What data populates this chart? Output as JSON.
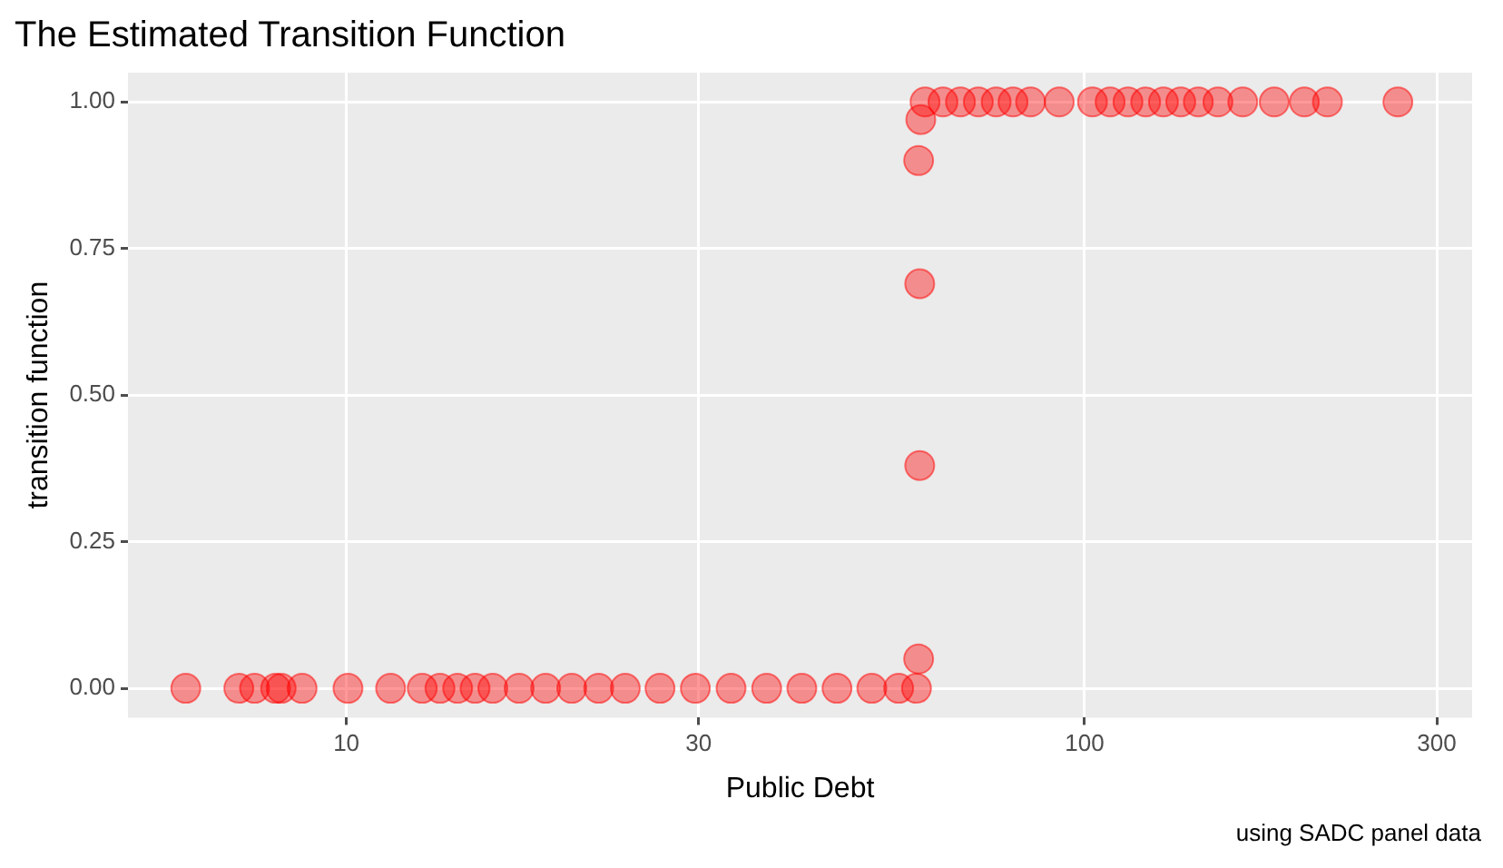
{
  "chart_data": {
    "type": "scatter",
    "title": "The Estimated Transition Function",
    "xlabel": "Public Debt",
    "ylabel": "transition function",
    "annotations": [
      "using SADC panel data"
    ],
    "log": "x",
    "xlim": [
      5.06,
      335
    ],
    "xticks": [
      10,
      30,
      100,
      300
    ],
    "ylim": [
      -0.05,
      1.05
    ],
    "yticks": [
      {
        "value": 0,
        "label": "0.00"
      },
      {
        "value": 0.25,
        "label": "0.25"
      },
      {
        "value": 0.5,
        "label": "0.50"
      },
      {
        "value": 0.75,
        "label": "0.75"
      },
      {
        "value": 1,
        "label": "1.00"
      }
    ],
    "grid": true,
    "legend": false,
    "marker": "circle",
    "series": [
      {
        "color": "#ff0000",
        "x": [
          6.06,
          7.15,
          7.51,
          8.02,
          8.16,
          8.71,
          10.05,
          11.48,
          12.67,
          13.39,
          14.15,
          14.94,
          15.79,
          17.14,
          18.62,
          20.2,
          21.97,
          23.87,
          26.6,
          29.7,
          33.2,
          37.1,
          41.4,
          46.2,
          51.5,
          56.0,
          59.2,
          59.6,
          59.8,
          59.8,
          59.6,
          60.0,
          60.8,
          64.3,
          67.9,
          71.8,
          75.9,
          80.0,
          84.5,
          92.4,
          102.5,
          108.3,
          114.5,
          121.0,
          127.9,
          135.0,
          142.6,
          151.6,
          163.8,
          180.7,
          198.5,
          213.3,
          265.7
        ],
        "values": [
          0,
          0,
          0,
          0,
          0,
          0,
          0,
          0,
          0,
          0,
          0,
          0,
          0,
          0,
          0,
          0,
          0,
          0,
          0,
          0,
          0,
          0,
          0,
          0,
          0,
          0,
          0,
          0.05,
          0.38,
          0.69,
          0.9,
          0.97,
          1,
          1,
          1,
          1,
          1,
          1,
          1,
          1,
          1,
          1,
          1,
          1,
          1,
          1,
          1,
          1,
          1,
          1,
          1,
          1,
          1
        ]
      }
    ]
  }
}
